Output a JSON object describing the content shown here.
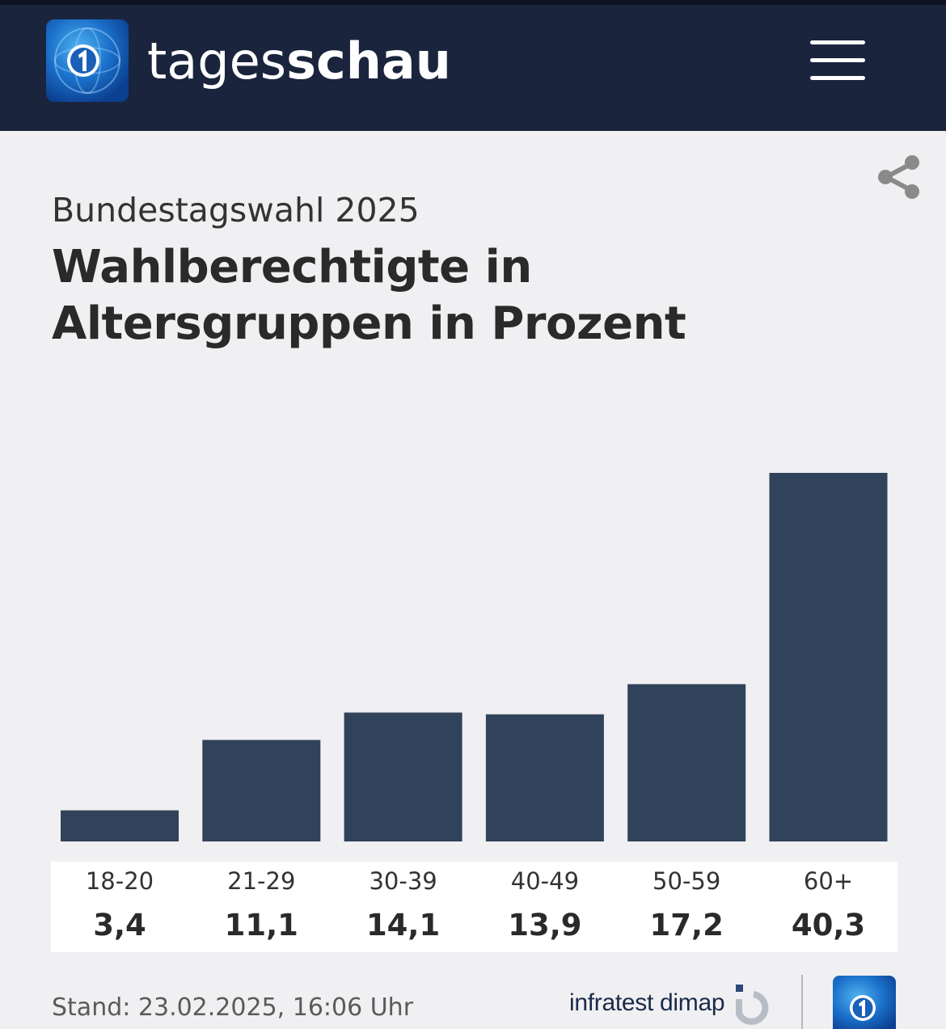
{
  "header": {
    "brand_light": "tages",
    "brand_bold": "schau",
    "logo_icon": "tagesschau-globe-logo-icon",
    "menu_icon": "hamburger-menu-icon",
    "background_color": "#1a243d"
  },
  "share": {
    "icon": "share-icon"
  },
  "article": {
    "subtitle": "Bundestagswahl 2025",
    "title": "Wahlberechtigte in Altersgruppen in Prozent"
  },
  "chart_data": {
    "type": "bar",
    "categories": [
      "18-20",
      "21-29",
      "30-39",
      "40-49",
      "50-59",
      "60+"
    ],
    "values": [
      3.4,
      11.1,
      14.1,
      13.9,
      17.2,
      40.3
    ],
    "value_labels": [
      "3,4",
      "11,1",
      "14,1",
      "13,9",
      "17,2",
      "40,3"
    ],
    "title": "Wahlberechtigte in Altersgruppen in Prozent",
    "subtitle": "Bundestagswahl 2025",
    "xlabel": "",
    "ylabel": "",
    "ylim": [
      0,
      40.3
    ],
    "grid": false,
    "bar_color": "#31435a"
  },
  "footer": {
    "stand": "Stand:  23.02.2025, 16:06 Uhr",
    "source": "infratest dimap",
    "source_icon": "infratest-dimap-logo-icon",
    "logo_icon": "ard-logo-icon"
  }
}
